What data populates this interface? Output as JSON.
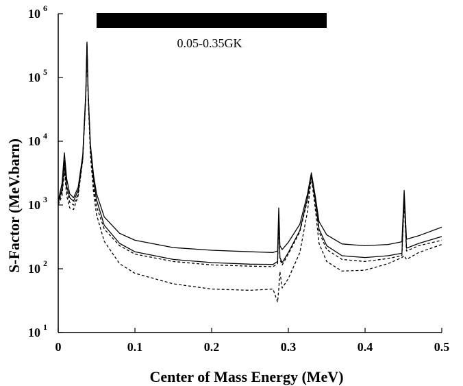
{
  "chart_data": {
    "type": "line",
    "title": "",
    "xlabel": "Center of Mass Energy (MeV)",
    "ylabel": "S-Factor (MeV.barn)",
    "xlim": [
      0,
      0.5
    ],
    "ylim": [
      10,
      1000000
    ],
    "yscale": "log",
    "grid": false,
    "legend": "none",
    "x_ticks": [
      "0",
      "0.1",
      "0.2",
      "0.3",
      "0.4",
      "0.5"
    ],
    "y_ticks": [
      {
        "base": "10",
        "exp": "1"
      },
      {
        "base": "10",
        "exp": "2"
      },
      {
        "base": "10",
        "exp": "3"
      },
      {
        "base": "10",
        "exp": "4"
      },
      {
        "base": "10",
        "exp": "5"
      },
      {
        "base": "10",
        "exp": "6"
      }
    ],
    "temperature_band": {
      "label": "0.05-0.35GK",
      "x_range": [
        0.05,
        0.35
      ],
      "color": "#000000"
    },
    "series": [
      {
        "style": "solid",
        "points": [
          [
            0,
            1150
          ],
          [
            0.005,
            2200
          ],
          [
            0.008,
            6600
          ],
          [
            0.011,
            2600
          ],
          [
            0.015,
            1500
          ],
          [
            0.02,
            1300
          ],
          [
            0.026,
            1900
          ],
          [
            0.032,
            6000
          ],
          [
            0.036,
            60000
          ],
          [
            0.0375,
            360000
          ],
          [
            0.039,
            60000
          ],
          [
            0.042,
            9000
          ],
          [
            0.046,
            3000
          ],
          [
            0.05,
            1500
          ],
          [
            0.06,
            650
          ],
          [
            0.08,
            360
          ],
          [
            0.1,
            280
          ],
          [
            0.15,
            215
          ],
          [
            0.2,
            195
          ],
          [
            0.25,
            185
          ],
          [
            0.28,
            180
          ],
          [
            0.286,
            190
          ],
          [
            0.2875,
            900
          ],
          [
            0.289,
            230
          ],
          [
            0.292,
            200
          ],
          [
            0.3,
            260
          ],
          [
            0.315,
            500
          ],
          [
            0.325,
            1500
          ],
          [
            0.33,
            3200
          ],
          [
            0.335,
            1400
          ],
          [
            0.34,
            550
          ],
          [
            0.35,
            340
          ],
          [
            0.37,
            245
          ],
          [
            0.4,
            230
          ],
          [
            0.43,
            240
          ],
          [
            0.448,
            265
          ],
          [
            0.451,
            1700
          ],
          [
            0.454,
            290
          ],
          [
            0.47,
            330
          ],
          [
            0.5,
            450
          ]
        ]
      },
      {
        "style": "solid",
        "points": [
          [
            0,
            1100
          ],
          [
            0.005,
            1800
          ],
          [
            0.008,
            5000
          ],
          [
            0.011,
            2000
          ],
          [
            0.015,
            1300
          ],
          [
            0.02,
            1150
          ],
          [
            0.026,
            1700
          ],
          [
            0.032,
            5500
          ],
          [
            0.036,
            55000
          ],
          [
            0.0375,
            340000
          ],
          [
            0.039,
            55000
          ],
          [
            0.042,
            8000
          ],
          [
            0.046,
            2500
          ],
          [
            0.05,
            1200
          ],
          [
            0.06,
            480
          ],
          [
            0.08,
            250
          ],
          [
            0.1,
            185
          ],
          [
            0.15,
            140
          ],
          [
            0.2,
            125
          ],
          [
            0.25,
            118
          ],
          [
            0.28,
            117
          ],
          [
            0.286,
            130
          ],
          [
            0.2875,
            700
          ],
          [
            0.289,
            150
          ],
          [
            0.292,
            125
          ],
          [
            0.3,
            180
          ],
          [
            0.315,
            400
          ],
          [
            0.325,
            1300
          ],
          [
            0.33,
            3000
          ],
          [
            0.335,
            1200
          ],
          [
            0.34,
            420
          ],
          [
            0.35,
            230
          ],
          [
            0.37,
            160
          ],
          [
            0.4,
            150
          ],
          [
            0.43,
            160
          ],
          [
            0.448,
            175
          ],
          [
            0.451,
            1300
          ],
          [
            0.454,
            210
          ],
          [
            0.47,
            250
          ],
          [
            0.5,
            320
          ]
        ]
      },
      {
        "style": "dashed",
        "points": [
          [
            0,
            1050
          ],
          [
            0.005,
            1600
          ],
          [
            0.008,
            4000
          ],
          [
            0.011,
            1700
          ],
          [
            0.015,
            1100
          ],
          [
            0.02,
            1000
          ],
          [
            0.026,
            1500
          ],
          [
            0.032,
            5200
          ],
          [
            0.036,
            52000
          ],
          [
            0.0375,
            320000
          ],
          [
            0.039,
            52000
          ],
          [
            0.042,
            7000
          ],
          [
            0.046,
            2000
          ],
          [
            0.05,
            950
          ],
          [
            0.06,
            420
          ],
          [
            0.08,
            230
          ],
          [
            0.1,
            170
          ],
          [
            0.15,
            130
          ],
          [
            0.2,
            115
          ],
          [
            0.25,
            110
          ],
          [
            0.28,
            108
          ],
          [
            0.286,
            120
          ],
          [
            0.2875,
            600
          ],
          [
            0.289,
            140
          ],
          [
            0.292,
            115
          ],
          [
            0.3,
            170
          ],
          [
            0.315,
            380
          ],
          [
            0.325,
            1200
          ],
          [
            0.33,
            2900
          ],
          [
            0.335,
            1150
          ],
          [
            0.34,
            380
          ],
          [
            0.35,
            200
          ],
          [
            0.37,
            140
          ],
          [
            0.4,
            130
          ],
          [
            0.43,
            145
          ],
          [
            0.448,
            160
          ],
          [
            0.451,
            1100
          ],
          [
            0.454,
            190
          ],
          [
            0.47,
            230
          ],
          [
            0.5,
            280
          ]
        ]
      },
      {
        "style": "dashed",
        "points": [
          [
            0,
            1000
          ],
          [
            0.005,
            1400
          ],
          [
            0.008,
            3500
          ],
          [
            0.011,
            1400
          ],
          [
            0.015,
            900
          ],
          [
            0.02,
            850
          ],
          [
            0.026,
            1400
          ],
          [
            0.032,
            5000
          ],
          [
            0.036,
            50000
          ],
          [
            0.0375,
            300000
          ],
          [
            0.039,
            50000
          ],
          [
            0.042,
            6000
          ],
          [
            0.046,
            1600
          ],
          [
            0.05,
            700
          ],
          [
            0.06,
            270
          ],
          [
            0.08,
            120
          ],
          [
            0.1,
            85
          ],
          [
            0.15,
            58
          ],
          [
            0.2,
            48
          ],
          [
            0.25,
            46
          ],
          [
            0.28,
            48
          ],
          [
            0.286,
            30
          ],
          [
            0.2875,
            48
          ],
          [
            0.289,
            90
          ],
          [
            0.292,
            50
          ],
          [
            0.3,
            70
          ],
          [
            0.315,
            180
          ],
          [
            0.325,
            800
          ],
          [
            0.33,
            2700
          ],
          [
            0.335,
            900
          ],
          [
            0.34,
            250
          ],
          [
            0.35,
            130
          ],
          [
            0.37,
            92
          ],
          [
            0.4,
            95
          ],
          [
            0.43,
            120
          ],
          [
            0.448,
            150
          ],
          [
            0.451,
            160
          ],
          [
            0.454,
            140
          ],
          [
            0.47,
            180
          ],
          [
            0.5,
            240
          ]
        ]
      }
    ]
  }
}
